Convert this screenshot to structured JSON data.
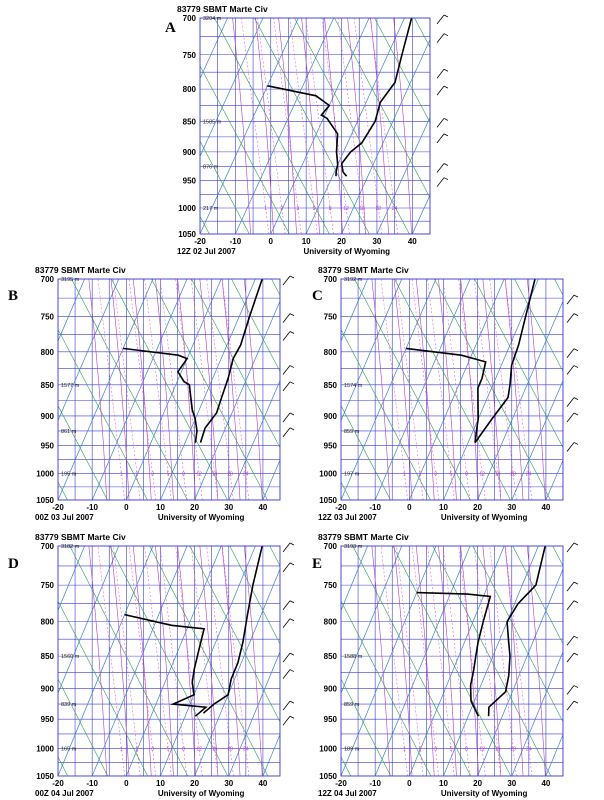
{
  "chart_data": [
    {
      "type": "line",
      "panel": "A",
      "title": "83779 SBMT Marte Civ",
      "time": "12Z 02 Jul 2007",
      "source": "University of Wyoming",
      "xlim": [
        -20,
        45
      ],
      "ylim": [
        700,
        1050
      ],
      "x_ticks": [
        "-20",
        "-10",
        "0",
        "10",
        "20",
        "30",
        "40"
      ],
      "y_ticks": [
        "700",
        "750",
        "800",
        "850",
        "900",
        "950",
        "1000",
        "1050"
      ],
      "height_labels": [
        {
          "p": 700,
          "text": "3204 m"
        },
        {
          "p": 850,
          "text": "1585 m"
        },
        {
          "p": 925,
          "text": "876 m"
        },
        {
          "p": 1000,
          "text": "217 m"
        }
      ],
      "mix_labels": [
        "1",
        "2",
        "3",
        "5",
        "8",
        "12",
        "16",
        "20",
        "24"
      ],
      "series": [
        {
          "values": [
            [
              12,
              700
            ],
            [
              14,
              750
            ],
            [
              15.6,
              790
            ],
            [
              14,
              820
            ],
            [
              15,
              850
            ],
            [
              14,
              885
            ],
            [
              12,
              900
            ],
            [
              11,
              920
            ],
            [
              12.5,
              935
            ],
            [
              14,
              942
            ]
          ]
        },
        {
          "values": [
            [
              -20,
              795
            ],
            [
              -5,
              810
            ],
            [
              0,
              825
            ],
            [
              -1,
              840
            ],
            [
              1,
              845
            ],
            [
              6,
              870
            ],
            [
              8,
              900
            ],
            [
              10,
              922
            ],
            [
              10.5,
              935
            ],
            [
              11,
              942
            ]
          ]
        }
      ]
    },
    {
      "type": "line",
      "panel": "B",
      "title": "83779 SBMT Marte Civ",
      "time": "00Z 03 Jul 2007",
      "source": "University of Wyoming",
      "xlim": [
        -20,
        45
      ],
      "ylim": [
        700,
        1050
      ],
      "x_ticks": [
        "-20",
        "-10",
        "0",
        "10",
        "20",
        "30",
        "40"
      ],
      "y_ticks": [
        "700",
        "750",
        "800",
        "850",
        "900",
        "950",
        "1000",
        "1050"
      ],
      "height_labels": [
        {
          "p": 700,
          "text": "3195 m"
        },
        {
          "p": 850,
          "text": "1577 m"
        },
        {
          "p": 925,
          "text": "861 m"
        },
        {
          "p": 1000,
          "text": "195 m"
        }
      ],
      "mix_labels": [
        "1",
        "2",
        "3",
        "5",
        "8",
        "12",
        "16",
        "20",
        "24"
      ],
      "series": [
        {
          "values": [
            [
              12,
              700
            ],
            [
              13,
              750
            ],
            [
              14,
              790
            ],
            [
              13.5,
              810
            ],
            [
              14.5,
              840
            ],
            [
              15,
              870
            ],
            [
              15.5,
              895
            ],
            [
              14,
              920
            ],
            [
              14.5,
              945
            ]
          ]
        },
        {
          "values": [
            [
              -20,
              795
            ],
            [
              -3,
              805
            ],
            [
              0,
              810
            ],
            [
              -1,
              830
            ],
            [
              2,
              845
            ],
            [
              4,
              850
            ],
            [
              6,
              870
            ],
            [
              8,
              890
            ],
            [
              10,
              905
            ],
            [
              12,
              925
            ],
            [
              13,
              945
            ]
          ]
        }
      ]
    },
    {
      "type": "line",
      "panel": "C",
      "title": "83779 SBMT Marte Civ",
      "time": "12Z 03 Jul 2007",
      "source": "University of Wyoming",
      "xlim": [
        -20,
        45
      ],
      "ylim": [
        700,
        1050
      ],
      "x_ticks": [
        "-20",
        "-10",
        "0",
        "10",
        "20",
        "30",
        "40"
      ],
      "y_ticks": [
        "700",
        "750",
        "800",
        "850",
        "900",
        "950",
        "1000",
        "1050"
      ],
      "height_labels": [
        {
          "p": 700,
          "text": "3192 m"
        },
        {
          "p": 850,
          "text": "1574 m"
        },
        {
          "p": 925,
          "text": "859 m"
        },
        {
          "p": 1000,
          "text": "197 m"
        }
      ],
      "mix_labels": [
        "1",
        "2",
        "3",
        "5",
        "8",
        "12",
        "16",
        "20",
        "24"
      ],
      "series": [
        {
          "values": [
            [
              9,
              700
            ],
            [
              11,
              750
            ],
            [
              12.5,
              790
            ],
            [
              13,
              820
            ],
            [
              15,
              850
            ],
            [
              16,
              870
            ],
            [
              14,
              905
            ],
            [
              13,
              925
            ],
            [
              12,
              945
            ]
          ]
        },
        {
          "values": [
            [
              -20,
              795
            ],
            [
              -3,
              805
            ],
            [
              5,
              815
            ],
            [
              6,
              840
            ],
            [
              6,
              855
            ],
            [
              8,
              880
            ],
            [
              10,
              905
            ],
            [
              11,
              925
            ],
            [
              12,
              945
            ]
          ]
        }
      ]
    },
    {
      "type": "line",
      "panel": "D",
      "title": "83779 SBMT Marte Civ",
      "time": "00Z 04 Jul 2007",
      "source": "University of Wyoming",
      "xlim": [
        -20,
        45
      ],
      "ylim": [
        700,
        1050
      ],
      "x_ticks": [
        "-20",
        "-10",
        "0",
        "10",
        "20",
        "30",
        "40"
      ],
      "y_ticks": [
        "700",
        "750",
        "800",
        "850",
        "900",
        "950",
        "1000",
        "1050"
      ],
      "height_labels": [
        {
          "p": 700,
          "text": "3182 m"
        },
        {
          "p": 850,
          "text": "1560 m"
        },
        {
          "p": 925,
          "text": "839 m"
        },
        {
          "p": 1000,
          "text": "165 m"
        }
      ],
      "mix_labels": [
        "1",
        "2",
        "3",
        "5",
        "8",
        "12",
        "16",
        "20",
        "24"
      ],
      "series": [
        {
          "values": [
            [
              12,
              700
            ],
            [
              14,
              750
            ],
            [
              16,
              790
            ],
            [
              18,
              830
            ],
            [
              19,
              860
            ],
            [
              19,
              885
            ],
            [
              20,
              910
            ],
            [
              17,
              925
            ],
            [
              15,
              940
            ]
          ]
        },
        {
          "values": [
            [
              -20,
              790
            ],
            [
              -5,
              805
            ],
            [
              5,
              810
            ],
            [
              6,
              840
            ],
            [
              7,
              870
            ],
            [
              8,
              890
            ],
            [
              10,
              910
            ],
            [
              5,
              925
            ],
            [
              15,
              930
            ],
            [
              13,
              945
            ]
          ]
        }
      ]
    },
    {
      "type": "line",
      "panel": "E",
      "title": "83779 SBMT Marte Civ",
      "time": "12Z 04 Jul 2007",
      "source": "University of Wyoming",
      "xlim": [
        -20,
        45
      ],
      "ylim": [
        700,
        1050
      ],
      "x_ticks": [
        "-20",
        "-10",
        "0",
        "10",
        "20",
        "30",
        "40"
      ],
      "y_ticks": [
        "700",
        "750",
        "800",
        "850",
        "900",
        "950",
        "1000",
        "1050"
      ],
      "height_labels": [
        {
          "p": 700,
          "text": "3193 m"
        },
        {
          "p": 850,
          "text": "1588 m"
        },
        {
          "p": 925,
          "text": "859 m"
        },
        {
          "p": 1000,
          "text": "189 m"
        }
      ],
      "mix_labels": [
        "1",
        "2",
        "3",
        "5",
        "8",
        "12",
        "16",
        "20",
        "24"
      ],
      "series": [
        {
          "values": [
            [
              12,
              700
            ],
            [
              14,
              750
            ],
            [
              11,
              775
            ],
            [
              10,
              800
            ],
            [
              13,
              830
            ],
            [
              15,
              850
            ],
            [
              17,
              880
            ],
            [
              18,
              905
            ],
            [
              15,
              930
            ],
            [
              16,
              945
            ]
          ]
        },
        {
          "values": [
            [
              -20,
              760
            ],
            [
              -5,
              762
            ],
            [
              2,
              765
            ],
            [
              3,
              800
            ],
            [
              4,
              830
            ],
            [
              5,
              850
            ],
            [
              6,
              870
            ],
            [
              7,
              895
            ],
            [
              9,
              920
            ],
            [
              13,
              945
            ]
          ]
        }
      ]
    }
  ]
}
